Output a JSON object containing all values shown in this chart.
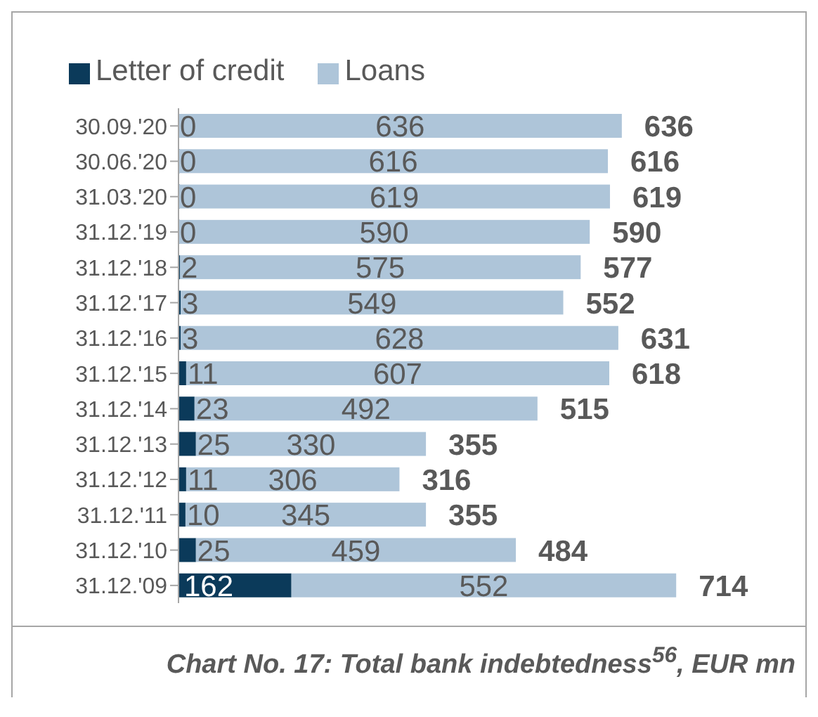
{
  "chart_data": {
    "type": "bar",
    "orientation": "horizontal",
    "stacked": true,
    "title": "Chart No. 17: Total bank indebtedness$^{56}$, EUR mn",
    "categories": [
      "30.09.'20",
      "30.06.'20",
      "31.03.'20",
      "31.12.'19",
      "31.12.'18",
      "31.12.'17",
      "31.12.'16",
      "31.12.'15",
      "31.12.'14",
      "31.12.'13",
      "31.12.'12",
      "31.12.'11",
      "31.12.'10",
      "31.12.'09"
    ],
    "series": [
      {
        "name": "Letter of credit",
        "color": "#0b3a5a",
        "values": [
          0,
          0,
          0,
          0,
          2,
          3,
          3,
          11,
          23,
          25,
          11,
          10,
          25,
          162
        ]
      },
      {
        "name": "Loans",
        "color": "#aec5d9",
        "values": [
          636,
          616,
          619,
          590,
          575,
          549,
          628,
          607,
          492,
          330,
          306,
          345,
          459,
          552
        ]
      }
    ],
    "totals": [
      "636",
      "616",
      "619",
      "590",
      "577",
      "552",
      "631",
      "618",
      "515",
      "355",
      "316",
      "355",
      "484",
      "714"
    ],
    "data_labels": true,
    "legend": "top left"
  }
}
